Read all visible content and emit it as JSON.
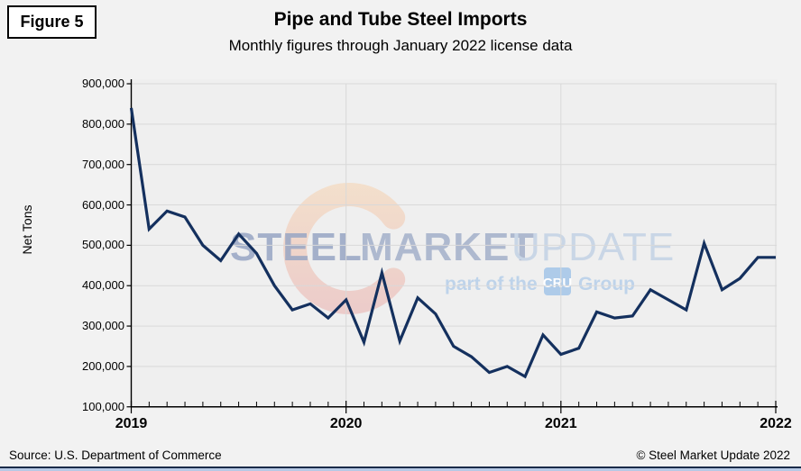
{
  "figure_label": "Figure 5",
  "title": "Pipe and Tube Steel Imports",
  "subtitle": "Monthly figures through January 2022 license data",
  "footer": {
    "source": "Source: U.S. Department of Commerce",
    "copyright": "© Steel Market Update 2022"
  },
  "watermark": {
    "steel": "STEEL",
    "market": "MARKET",
    "update": "UPDATE",
    "part_of_the": "part of the",
    "cru": "CRU",
    "group": "Group"
  },
  "colors": {
    "line": "#14305E",
    "plot_background": "#EFEFEF",
    "page_background": "#F2F2F2",
    "gridline": "#D9D9D9",
    "axis": "#000000",
    "watermark_text": "#98A6C4",
    "watermark_light_text": "#C9D6E6",
    "watermark_blue": "#BED3EA",
    "crescent_top": "#F7D0A8",
    "crescent_bottom": "#E9A7A4",
    "bottom_strip": "#B7C9E5"
  },
  "chart_data": {
    "type": "line",
    "title": "Pipe and Tube Steel Imports",
    "subtitle": "Monthly figures through January 2022 license data",
    "xlabel": "",
    "ylabel": "Net Tons",
    "ylim": [
      100000,
      900000
    ],
    "grid": true,
    "legend": "none",
    "y_tick_labels": [
      "900,000",
      "800,000",
      "700,000",
      "600,000",
      "500,000",
      "400,000",
      "300,000",
      "200,000",
      "100,000"
    ],
    "x_year_labels": [
      "2019",
      "2020",
      "2021",
      "2022"
    ],
    "x_year_indices": [
      0,
      12,
      24,
      36
    ],
    "x": [
      "2019-01",
      "2019-02",
      "2019-03",
      "2019-04",
      "2019-05",
      "2019-06",
      "2019-07",
      "2019-08",
      "2019-09",
      "2019-10",
      "2019-11",
      "2019-12",
      "2020-01",
      "2020-02",
      "2020-03",
      "2020-04",
      "2020-05",
      "2020-06",
      "2020-07",
      "2020-08",
      "2020-09",
      "2020-10",
      "2020-11",
      "2020-12",
      "2021-01",
      "2021-02",
      "2021-03",
      "2021-04",
      "2021-05",
      "2021-06",
      "2021-07",
      "2021-08",
      "2021-09",
      "2021-10",
      "2021-11",
      "2021-12",
      "2022-01"
    ],
    "series": [
      {
        "name": "Pipe and Tube Steel Imports (Net Tons)",
        "values": [
          840000,
          540000,
          585000,
          570000,
          500000,
          462000,
          528000,
          480000,
          400000,
          340000,
          355000,
          320000,
          365000,
          260000,
          432000,
          263000,
          370000,
          330000,
          250000,
          224000,
          185000,
          200000,
          175000,
          278000,
          230000,
          245000,
          335000,
          320000,
          325000,
          390000,
          365000,
          340000,
          505000,
          390000,
          418000,
          470000,
          470000
        ]
      }
    ]
  }
}
